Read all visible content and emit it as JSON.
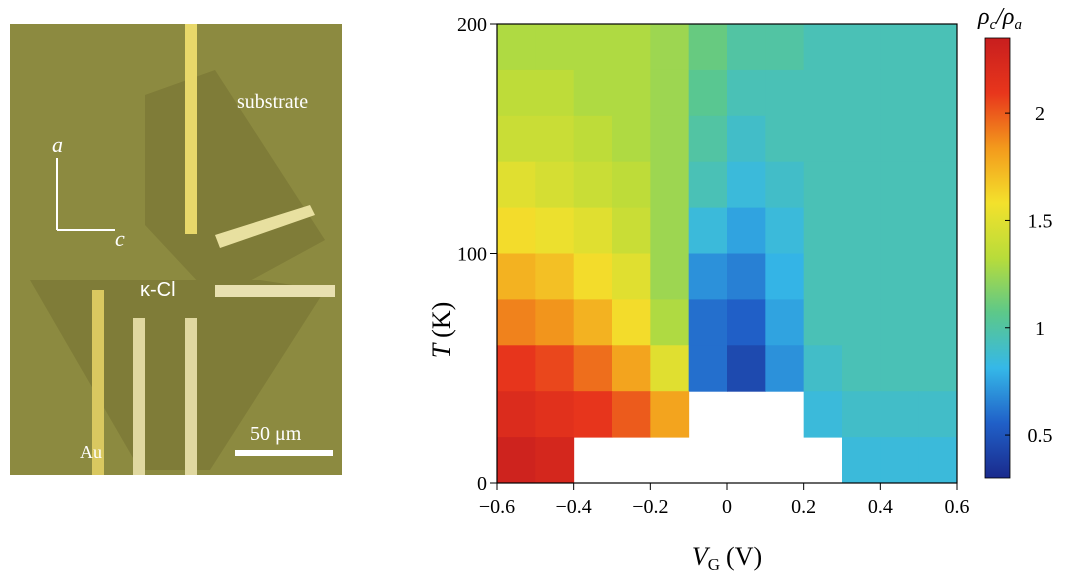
{
  "micrograph": {
    "labels": {
      "substrate": "substrate",
      "axis_a": "a",
      "axis_c": "c",
      "sample": "κ-Cl",
      "electrode": "Au",
      "scale_bar": "50 μm"
    }
  },
  "chart_data": {
    "type": "heatmap",
    "x_label": {
      "symbol": "V",
      "subscript": "G",
      "unit": "(V)"
    },
    "y_label": {
      "symbol": "T",
      "unit": "(K)"
    },
    "colorbar_label": {
      "numerator": "ρ",
      "numerator_sub": "c",
      "slash": "/",
      "denominator": "ρ",
      "denominator_sub": "a"
    },
    "x": [
      -0.6,
      -0.5,
      -0.4,
      -0.3,
      -0.2,
      -0.1,
      0,
      0.1,
      0.2,
      0.3,
      0.4,
      0.5,
      0.6
    ],
    "y": [
      200,
      180,
      160,
      140,
      120,
      100,
      80,
      60,
      40,
      20,
      0
    ],
    "z": [
      [
        1.3,
        1.3,
        1.3,
        1.3,
        1.25,
        1.1,
        1.0,
        1.0,
        0.95,
        0.95,
        0.95,
        0.95
      ],
      [
        1.35,
        1.35,
        1.3,
        1.3,
        1.25,
        1.05,
        0.95,
        0.95,
        0.95,
        0.95,
        0.95,
        0.95
      ],
      [
        1.4,
        1.4,
        1.35,
        1.3,
        1.25,
        1.0,
        0.9,
        0.95,
        0.95,
        0.95,
        0.95,
        0.95
      ],
      [
        1.5,
        1.45,
        1.4,
        1.35,
        1.25,
        0.95,
        0.85,
        0.9,
        0.95,
        0.95,
        0.95,
        0.95
      ],
      [
        1.6,
        1.55,
        1.5,
        1.4,
        1.25,
        0.85,
        0.75,
        0.85,
        0.95,
        0.95,
        0.95,
        0.95
      ],
      [
        1.75,
        1.7,
        1.6,
        1.5,
        1.25,
        0.7,
        0.65,
        0.8,
        0.95,
        0.95,
        0.95,
        0.95
      ],
      [
        1.9,
        1.85,
        1.75,
        1.6,
        1.3,
        0.6,
        0.55,
        0.75,
        0.95,
        0.95,
        0.95,
        0.95
      ],
      [
        2.1,
        2.05,
        1.95,
        1.8,
        1.5,
        0.6,
        0.45,
        0.7,
        0.9,
        0.95,
        0.95,
        0.95
      ],
      [
        2.2,
        2.15,
        2.1,
        2.0,
        1.8,
        null,
        null,
        null,
        0.85,
        0.9,
        0.9,
        0.9
      ],
      [
        2.3,
        2.25,
        null,
        null,
        null,
        null,
        null,
        null,
        null,
        0.85,
        0.85,
        0.85
      ]
    ],
    "xlim": [
      -0.6,
      0.6
    ],
    "xticks": [
      {
        "value": -0.6,
        "label": "−0.6"
      },
      {
        "value": -0.4,
        "label": "−0.4"
      },
      {
        "value": -0.2,
        "label": "−0.2"
      },
      0,
      0.2,
      0.4,
      0.6
    ],
    "ylim": [
      0,
      200
    ],
    "yticks": [
      0,
      100,
      200
    ],
    "zlim": [
      0.3,
      2.35
    ],
    "zticks": [
      0.5,
      1,
      1.5,
      2
    ],
    "colormap": [
      "#1a2a8c",
      "#2060c8",
      "#35b8e8",
      "#5cc88a",
      "#b8dc3a",
      "#f3e12c",
      "#f39a1c",
      "#e8361c",
      "#c81e1e"
    ]
  }
}
